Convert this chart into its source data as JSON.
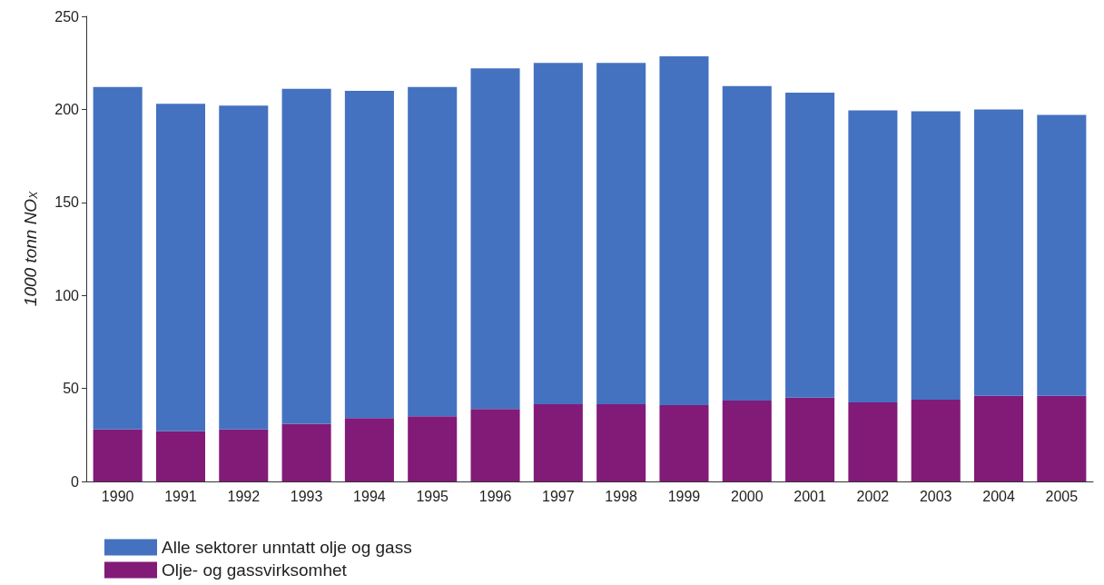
{
  "chart_data": {
    "type": "bar",
    "stacked": true,
    "ylabel": "1000 tonn NO$_{X}$",
    "categories": [
      "1990",
      "1991",
      "1992",
      "1993",
      "1994",
      "1995",
      "1996",
      "1997",
      "1998",
      "1999",
      "2000",
      "2001",
      "2002",
      "2003",
      "2004",
      "2005"
    ],
    "series": [
      {
        "name": "Olje- og gassvirksomhet",
        "color": "#821a78",
        "values": [
          28,
          27,
          28,
          31,
          34,
          35,
          39,
          41.5,
          41.5,
          41,
          43.5,
          45,
          42.5,
          44,
          46,
          46
        ]
      },
      {
        "name": "Alle sektorer unntatt olje og gass",
        "color": "#4472c0",
        "values": [
          184,
          176,
          174,
          180,
          176,
          177,
          183,
          183.5,
          183.5,
          187.5,
          169,
          164,
          157,
          155,
          154,
          151
        ]
      }
    ],
    "ylim": [
      0,
      250
    ],
    "yticks": [
      0,
      50,
      100,
      150,
      200,
      250
    ],
    "grid": false,
    "legend": "bottom left"
  }
}
